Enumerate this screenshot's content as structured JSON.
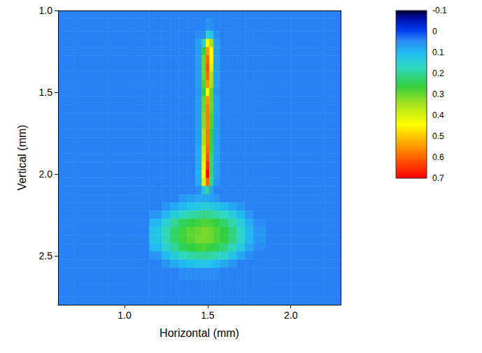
{
  "chart_data": {
    "type": "heatmap",
    "x_label": "Horizontal (mm)",
    "y_label": "Vertical (mm)",
    "x": [
      0.6,
      0.8,
      1.0,
      1.1,
      1.2,
      1.25,
      1.3,
      1.35,
      1.4,
      1.45,
      1.48,
      1.5,
      1.52,
      1.55,
      1.6,
      1.65,
      1.7,
      1.75,
      1.8,
      1.9,
      2.1,
      2.3
    ],
    "y": [
      1.0,
      1.1,
      1.15,
      1.2,
      1.25,
      1.3,
      1.35,
      1.4,
      1.45,
      1.5,
      1.55,
      1.6,
      1.65,
      1.7,
      1.75,
      1.8,
      1.85,
      1.9,
      1.95,
      2.0,
      2.05,
      2.1,
      2.15,
      2.2,
      2.25,
      2.3,
      2.35,
      2.4,
      2.45,
      2.5,
      2.55,
      2.6,
      2.7,
      2.8
    ],
    "values": [
      [
        0.04,
        0.04,
        0.04,
        0.04,
        0.04,
        0.04,
        0.04,
        0.04,
        0.04,
        0.04,
        0.04,
        0.04,
        0.04,
        0.04,
        0.04,
        0.04,
        0.04,
        0.04,
        0.04,
        0.04,
        0.04,
        0.04
      ],
      [
        0.04,
        0.04,
        0.04,
        0.04,
        0.04,
        0.04,
        0.04,
        0.04,
        0.04,
        0.04,
        0.04,
        0.06,
        0.05,
        0.04,
        0.04,
        0.04,
        0.04,
        0.04,
        0.04,
        0.04,
        0.04,
        0.04
      ],
      [
        0.04,
        0.04,
        0.04,
        0.04,
        0.04,
        0.04,
        0.04,
        0.04,
        0.04,
        0.05,
        0.05,
        0.15,
        0.12,
        0.05,
        0.04,
        0.04,
        0.04,
        0.04,
        0.04,
        0.04,
        0.04,
        0.04
      ],
      [
        0.04,
        0.04,
        0.04,
        0.04,
        0.04,
        0.04,
        0.04,
        0.04,
        0.04,
        0.07,
        0.15,
        0.45,
        0.35,
        0.07,
        0.04,
        0.04,
        0.04,
        0.04,
        0.04,
        0.04,
        0.04,
        0.04
      ],
      [
        0.04,
        0.04,
        0.04,
        0.04,
        0.04,
        0.04,
        0.04,
        0.04,
        0.04,
        0.07,
        0.25,
        0.55,
        0.45,
        0.07,
        0.04,
        0.04,
        0.04,
        0.04,
        0.04,
        0.04,
        0.04,
        0.04
      ],
      [
        0.04,
        0.04,
        0.04,
        0.04,
        0.04,
        0.04,
        0.04,
        0.04,
        0.04,
        0.07,
        0.3,
        0.6,
        0.45,
        0.07,
        0.04,
        0.04,
        0.04,
        0.04,
        0.04,
        0.04,
        0.04,
        0.04
      ],
      [
        0.04,
        0.04,
        0.04,
        0.04,
        0.04,
        0.04,
        0.04,
        0.04,
        0.04,
        0.07,
        0.3,
        0.62,
        0.4,
        0.07,
        0.04,
        0.04,
        0.04,
        0.04,
        0.04,
        0.04,
        0.04,
        0.04
      ],
      [
        0.04,
        0.04,
        0.04,
        0.04,
        0.04,
        0.04,
        0.04,
        0.04,
        0.04,
        0.07,
        0.3,
        0.6,
        0.35,
        0.07,
        0.04,
        0.04,
        0.04,
        0.04,
        0.04,
        0.04,
        0.04,
        0.04
      ],
      [
        0.04,
        0.04,
        0.04,
        0.04,
        0.04,
        0.04,
        0.04,
        0.04,
        0.04,
        0.07,
        0.28,
        0.55,
        0.35,
        0.07,
        0.04,
        0.04,
        0.04,
        0.04,
        0.04,
        0.04,
        0.04,
        0.04
      ],
      [
        0.04,
        0.04,
        0.04,
        0.04,
        0.04,
        0.04,
        0.04,
        0.04,
        0.04,
        0.06,
        0.25,
        0.45,
        0.3,
        0.06,
        0.04,
        0.04,
        0.04,
        0.04,
        0.04,
        0.04,
        0.04,
        0.04
      ],
      [
        0.04,
        0.04,
        0.04,
        0.04,
        0.04,
        0.04,
        0.04,
        0.04,
        0.04,
        0.07,
        0.3,
        0.55,
        0.3,
        0.07,
        0.04,
        0.04,
        0.04,
        0.04,
        0.04,
        0.04,
        0.04,
        0.04
      ],
      [
        0.04,
        0.04,
        0.04,
        0.04,
        0.04,
        0.04,
        0.04,
        0.04,
        0.04,
        0.07,
        0.3,
        0.58,
        0.3,
        0.07,
        0.04,
        0.04,
        0.04,
        0.04,
        0.04,
        0.04,
        0.04,
        0.04
      ],
      [
        0.04,
        0.04,
        0.04,
        0.04,
        0.04,
        0.04,
        0.04,
        0.04,
        0.04,
        0.07,
        0.32,
        0.58,
        0.28,
        0.07,
        0.04,
        0.04,
        0.04,
        0.04,
        0.04,
        0.04,
        0.04,
        0.04
      ],
      [
        0.04,
        0.04,
        0.04,
        0.04,
        0.04,
        0.04,
        0.04,
        0.04,
        0.04,
        0.07,
        0.32,
        0.57,
        0.28,
        0.07,
        0.04,
        0.04,
        0.04,
        0.04,
        0.04,
        0.04,
        0.04,
        0.04
      ],
      [
        0.04,
        0.04,
        0.04,
        0.04,
        0.04,
        0.04,
        0.04,
        0.04,
        0.04,
        0.07,
        0.35,
        0.58,
        0.25,
        0.07,
        0.04,
        0.04,
        0.04,
        0.04,
        0.04,
        0.04,
        0.04,
        0.04
      ],
      [
        0.04,
        0.04,
        0.04,
        0.04,
        0.04,
        0.04,
        0.04,
        0.04,
        0.04,
        0.07,
        0.35,
        0.58,
        0.25,
        0.07,
        0.04,
        0.04,
        0.04,
        0.04,
        0.04,
        0.04,
        0.04,
        0.04
      ],
      [
        0.04,
        0.04,
        0.04,
        0.04,
        0.04,
        0.04,
        0.04,
        0.04,
        0.04,
        0.08,
        0.38,
        0.6,
        0.25,
        0.07,
        0.04,
        0.04,
        0.04,
        0.04,
        0.04,
        0.04,
        0.04,
        0.04
      ],
      [
        0.04,
        0.04,
        0.04,
        0.04,
        0.04,
        0.04,
        0.04,
        0.04,
        0.04,
        0.08,
        0.4,
        0.62,
        0.22,
        0.07,
        0.04,
        0.04,
        0.04,
        0.04,
        0.04,
        0.04,
        0.04,
        0.04
      ],
      [
        0.04,
        0.04,
        0.04,
        0.04,
        0.04,
        0.04,
        0.04,
        0.04,
        0.04,
        0.08,
        0.42,
        0.66,
        0.22,
        0.07,
        0.04,
        0.04,
        0.04,
        0.04,
        0.04,
        0.04,
        0.04,
        0.04
      ],
      [
        0.04,
        0.04,
        0.04,
        0.04,
        0.04,
        0.04,
        0.04,
        0.04,
        0.04,
        0.09,
        0.45,
        0.7,
        0.22,
        0.07,
        0.04,
        0.04,
        0.04,
        0.04,
        0.04,
        0.04,
        0.04,
        0.04
      ],
      [
        0.04,
        0.04,
        0.04,
        0.04,
        0.04,
        0.04,
        0.04,
        0.04,
        0.04,
        0.08,
        0.4,
        0.6,
        0.2,
        0.06,
        0.04,
        0.04,
        0.04,
        0.04,
        0.04,
        0.04,
        0.04,
        0.04
      ],
      [
        0.04,
        0.04,
        0.04,
        0.04,
        0.04,
        0.04,
        0.04,
        0.04,
        0.04,
        0.05,
        0.12,
        0.2,
        0.08,
        0.04,
        0.04,
        0.04,
        0.04,
        0.04,
        0.04,
        0.04,
        0.04,
        0.04
      ],
      [
        0.04,
        0.04,
        0.04,
        0.04,
        0.04,
        0.04,
        0.04,
        0.06,
        0.07,
        0.08,
        0.08,
        0.08,
        0.07,
        0.06,
        0.04,
        0.04,
        0.04,
        0.04,
        0.04,
        0.04,
        0.04,
        0.04
      ],
      [
        0.04,
        0.04,
        0.04,
        0.04,
        0.04,
        0.06,
        0.08,
        0.1,
        0.12,
        0.13,
        0.14,
        0.14,
        0.13,
        0.12,
        0.1,
        0.08,
        0.06,
        0.04,
        0.04,
        0.04,
        0.04,
        0.04
      ],
      [
        0.04,
        0.04,
        0.04,
        0.04,
        0.06,
        0.1,
        0.14,
        0.17,
        0.19,
        0.2,
        0.21,
        0.21,
        0.2,
        0.19,
        0.17,
        0.14,
        0.1,
        0.06,
        0.04,
        0.04,
        0.04,
        0.04
      ],
      [
        0.04,
        0.04,
        0.04,
        0.04,
        0.1,
        0.15,
        0.2,
        0.24,
        0.26,
        0.27,
        0.28,
        0.28,
        0.27,
        0.26,
        0.23,
        0.19,
        0.14,
        0.09,
        0.05,
        0.04,
        0.04,
        0.04
      ],
      [
        0.04,
        0.04,
        0.04,
        0.04,
        0.12,
        0.18,
        0.23,
        0.27,
        0.29,
        0.3,
        0.31,
        0.31,
        0.3,
        0.28,
        0.26,
        0.22,
        0.16,
        0.1,
        0.06,
        0.04,
        0.04,
        0.04
      ],
      [
        0.04,
        0.04,
        0.04,
        0.04,
        0.12,
        0.18,
        0.23,
        0.27,
        0.29,
        0.31,
        0.31,
        0.31,
        0.3,
        0.28,
        0.26,
        0.22,
        0.16,
        0.1,
        0.06,
        0.04,
        0.04,
        0.04
      ],
      [
        0.04,
        0.04,
        0.04,
        0.04,
        0.1,
        0.15,
        0.2,
        0.24,
        0.26,
        0.27,
        0.28,
        0.27,
        0.26,
        0.25,
        0.22,
        0.18,
        0.13,
        0.08,
        0.05,
        0.04,
        0.04,
        0.04
      ],
      [
        0.04,
        0.04,
        0.04,
        0.04,
        0.06,
        0.1,
        0.14,
        0.17,
        0.19,
        0.2,
        0.2,
        0.2,
        0.19,
        0.18,
        0.16,
        0.12,
        0.08,
        0.05,
        0.04,
        0.04,
        0.04,
        0.04
      ],
      [
        0.04,
        0.04,
        0.04,
        0.04,
        0.04,
        0.06,
        0.08,
        0.1,
        0.11,
        0.12,
        0.12,
        0.12,
        0.11,
        0.1,
        0.08,
        0.06,
        0.04,
        0.04,
        0.04,
        0.04,
        0.04,
        0.04
      ],
      [
        0.04,
        0.04,
        0.04,
        0.04,
        0.04,
        0.04,
        0.04,
        0.05,
        0.05,
        0.05,
        0.05,
        0.05,
        0.05,
        0.05,
        0.04,
        0.04,
        0.04,
        0.04,
        0.04,
        0.04,
        0.04,
        0.04
      ],
      [
        0.04,
        0.04,
        0.04,
        0.04,
        0.04,
        0.04,
        0.04,
        0.04,
        0.04,
        0.04,
        0.04,
        0.04,
        0.04,
        0.04,
        0.04,
        0.04,
        0.04,
        0.04,
        0.04,
        0.04,
        0.04,
        0.04
      ],
      [
        0.04,
        0.04,
        0.04,
        0.04,
        0.04,
        0.04,
        0.04,
        0.04,
        0.04,
        0.04,
        0.04,
        0.04,
        0.04,
        0.04,
        0.04,
        0.04,
        0.04,
        0.04,
        0.04,
        0.04,
        0.04,
        0.04
      ]
    ],
    "xlim": [
      0.6,
      2.3
    ],
    "xticks": [
      {
        "value": 1,
        "label": "1.0"
      },
      1.5,
      {
        "value": 2,
        "label": "2.0"
      }
    ],
    "ylim": [
      2.8,
      1.0
    ],
    "yticks": [
      {
        "value": 1,
        "label": "1.0"
      },
      1.5,
      {
        "value": 2,
        "label": "2.0"
      },
      2.5
    ],
    "colorbar": {
      "range": [
        -0.1,
        0.7
      ],
      "ticks": [
        -0.1,
        0,
        0.1,
        0.2,
        0.3,
        0.4,
        0.5,
        0.6,
        0.7
      ]
    }
  }
}
